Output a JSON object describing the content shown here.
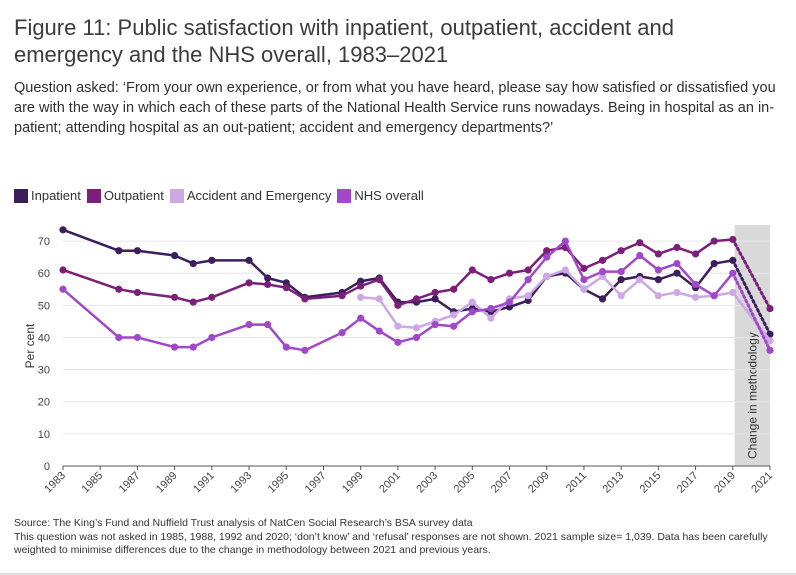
{
  "title": "Figure 11: Public satisfaction with inpatient, outpatient, accident and emergency and the NHS overall, 1983–2021",
  "question": "Question asked: ‘From your own experience, or from what you have heard, please say how satisfied or dissatisfied you are with the way in which each of these parts of the National Health Service runs nowadays. Being in hospital as an in-patient; attending hospital as an out-patient; accident and emergency departments?’",
  "footer": {
    "source": "Source: The King’s Fund and Nuffield Trust analysis of NatCen Social Research’s BSA survey data",
    "note": "This question was not asked in 1985, 1988, 1992 and 2020; ‘don’t know’ and ‘refusal’ responses are not shown. 2021 sample size= 1,039. Data has been carefully weighted to minimise differences due to the change in methodology between 2021 and previous years."
  },
  "chart_data": {
    "type": "line",
    "ylabel": "Per cent",
    "ylim": [
      0,
      75
    ],
    "yticks": [
      0,
      10,
      20,
      30,
      40,
      50,
      60,
      70
    ],
    "xlim": [
      1983,
      2021
    ],
    "xticks": [
      "1983",
      "1985",
      "1987",
      "1989",
      "1991",
      "1993",
      "1995",
      "1997",
      "1999",
      "2001",
      "2003",
      "2005",
      "2007",
      "2009",
      "2011",
      "2013",
      "2015",
      "2017",
      "2019",
      "2021"
    ],
    "shaded_region": {
      "from": 2019.1,
      "to": 2021,
      "label": "Change in methodology",
      "color": "#d9d9d9"
    },
    "series": [
      {
        "name": "Inpatient",
        "color": "#3b1f5c",
        "x": [
          1983,
          1986,
          1987,
          1989,
          1990,
          1991,
          1993,
          1994,
          1995,
          1996,
          1998,
          1999,
          2000,
          2001,
          2002,
          2003,
          2004,
          2005,
          2006,
          2007,
          2008,
          2009,
          2010,
          2011,
          2012,
          2013,
          2014,
          2015,
          2016,
          2017,
          2018,
          2019
        ],
        "y": [
          73.5,
          67,
          67,
          65.5,
          63,
          64,
          64,
          58.5,
          57,
          52.5,
          54,
          57.5,
          58.5,
          51,
          51,
          52,
          48,
          49,
          48,
          49.5,
          51.5,
          59,
          60,
          55,
          52,
          58,
          59,
          58,
          60,
          55.5,
          63,
          64
        ],
        "projection": {
          "x": [
            2019,
            2021
          ],
          "y": [
            64,
            41
          ]
        }
      },
      {
        "name": "Outpatient",
        "color": "#7b1f7b",
        "x": [
          1983,
          1986,
          1987,
          1989,
          1990,
          1991,
          1993,
          1994,
          1995,
          1996,
          1998,
          1999,
          2000,
          2001,
          2002,
          2003,
          2004,
          2005,
          2006,
          2007,
          2008,
          2009,
          2010,
          2011,
          2012,
          2013,
          2014,
          2015,
          2016,
          2017,
          2018,
          2019
        ],
        "y": [
          61,
          55,
          54,
          52.5,
          51,
          52.5,
          57,
          56.5,
          55.5,
          52,
          53,
          56,
          58,
          50,
          52,
          54,
          55,
          61,
          58,
          60,
          61,
          67,
          68,
          61.5,
          64,
          67,
          69.5,
          66,
          68,
          66,
          70,
          70.5
        ],
        "projection": {
          "x": [
            2019,
            2021
          ],
          "y": [
            70.5,
            49
          ]
        }
      },
      {
        "name": "Accident and Emergency",
        "color": "#cda8e3",
        "x": [
          1999,
          2000,
          2001,
          2002,
          2003,
          2004,
          2005,
          2006,
          2007,
          2008,
          2009,
          2010,
          2011,
          2012,
          2013,
          2014,
          2015,
          2016,
          2017,
          2018,
          2019
        ],
        "y": [
          52.5,
          52,
          43.5,
          43,
          45,
          47,
          51,
          46,
          52,
          53,
          59,
          61,
          55,
          59,
          53,
          58,
          53,
          54,
          52.5,
          53,
          54
        ],
        "projection": {
          "x": [
            2019,
            2021
          ],
          "y": [
            54,
            39
          ]
        }
      },
      {
        "name": "NHS overall",
        "color": "#a148c8",
        "x": [
          1983,
          1986,
          1987,
          1989,
          1990,
          1991,
          1993,
          1994,
          1995,
          1996,
          1998,
          1999,
          2000,
          2001,
          2002,
          2003,
          2004,
          2005,
          2006,
          2007,
          2008,
          2009,
          2010,
          2011,
          2012,
          2013,
          2014,
          2015,
          2016,
          2017,
          2018,
          2019
        ],
        "y": [
          55,
          40,
          40,
          37,
          37,
          40,
          44,
          44,
          37,
          36,
          41.5,
          46,
          42,
          38.5,
          40,
          44,
          43.5,
          48,
          49,
          51,
          58,
          65,
          70,
          58,
          60.5,
          60.5,
          65.5,
          61,
          63,
          56.5,
          53,
          60
        ],
        "projection": {
          "x": [
            2019,
            2021
          ],
          "y": [
            60,
            36
          ]
        }
      }
    ]
  }
}
